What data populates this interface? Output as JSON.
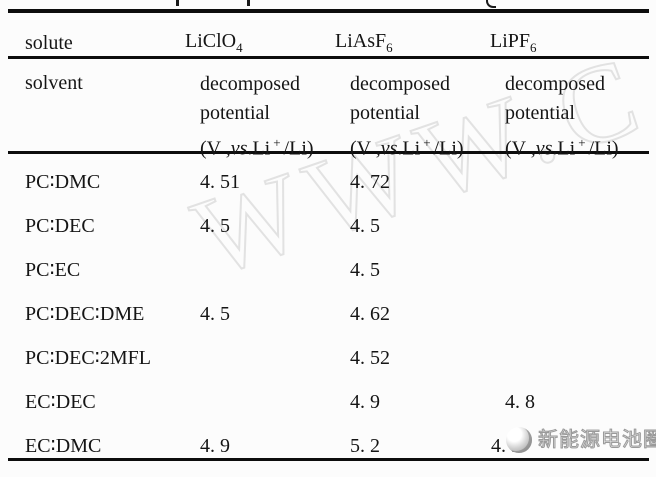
{
  "table": {
    "corner": {
      "row1": "solute",
      "row2": "solvent"
    },
    "solutes": [
      {
        "formula": "LiClO",
        "subscript": "4"
      },
      {
        "formula": "LiAsF",
        "subscript": "6"
      },
      {
        "formula": "LiPF",
        "subscript": "6"
      }
    ],
    "subheader": {
      "line1": "decomposed",
      "line2": "potential",
      "unit": {
        "open": "(V ,",
        "vs": "vs",
        "mid": ".Li",
        "sup": "+",
        "close": "/Li)"
      }
    },
    "rows": [
      {
        "solvent": "PC∶DMC",
        "values": [
          "4. 51",
          "4. 72",
          ""
        ]
      },
      {
        "solvent": "PC∶DEC",
        "values": [
          "4. 5",
          "4. 5",
          ""
        ]
      },
      {
        "solvent": "PC∶EC",
        "values": [
          "",
          "4. 5",
          ""
        ]
      },
      {
        "solvent": "PC∶DEC∶DME",
        "values": [
          "4. 5",
          "4. 62",
          ""
        ]
      },
      {
        "solvent": "PC∶DEC∶2MFL",
        "values": [
          "",
          "4. 52",
          ""
        ]
      },
      {
        "solvent": "EC∶DEC",
        "values": [
          "",
          "4. 9",
          "4. 8"
        ]
      },
      {
        "solvent": "EC∶DMC",
        "values": [
          "4. 9",
          "5. 2",
          "4. 9"
        ]
      }
    ]
  },
  "watermark": {
    "text": "WWW.C",
    "color": "#e2e2e2"
  },
  "logo": {
    "name": "新能源电池圈",
    "color": "#9a9a9a"
  }
}
